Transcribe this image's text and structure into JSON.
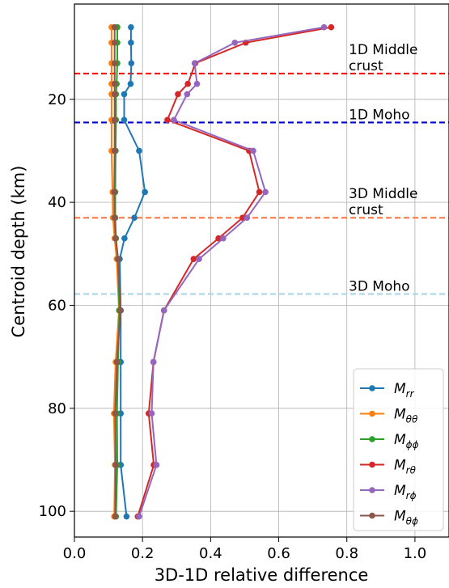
{
  "chart_data": {
    "type": "line",
    "xlabel": "3D-1D relative difference",
    "ylabel": "Centroid depth (km)",
    "xlim": [
      0.0,
      1.1
    ],
    "ylim": [
      105,
      1.5
    ],
    "y_inverted": true,
    "grid": true,
    "legend_position": "bottom-right",
    "x_ticks": [
      {
        "value": 0.0,
        "label": "0.0"
      },
      {
        "value": 0.2,
        "label": "0.2"
      },
      {
        "value": 0.4,
        "label": "0.4"
      },
      {
        "value": 0.6,
        "label": "0.6"
      },
      {
        "value": 0.8,
        "label": "0.8"
      },
      {
        "value": 1.0,
        "label": "1.0"
      }
    ],
    "y_ticks": [
      {
        "value": 20,
        "label": "20"
      },
      {
        "value": 40,
        "label": "40"
      },
      {
        "value": 60,
        "label": "60"
      },
      {
        "value": 80,
        "label": "80"
      },
      {
        "value": 100,
        "label": "100"
      }
    ],
    "depths": [
      6,
      9,
      13,
      17,
      19,
      24,
      30,
      38,
      43,
      47,
      51,
      61,
      71,
      81,
      91,
      101
    ],
    "series": [
      {
        "name": "M_rr",
        "base": "M",
        "sub": "rr",
        "color": "#1f77b4",
        "values": [
          0.166,
          0.166,
          0.167,
          0.165,
          0.146,
          0.146,
          0.19,
          0.207,
          0.176,
          0.147,
          0.133,
          0.136,
          0.136,
          0.136,
          0.136,
          0.153
        ]
      },
      {
        "name": "M_θθ",
        "base": "M",
        "sub": "θθ",
        "color": "#ff7f0e",
        "values": [
          0.109,
          0.109,
          0.109,
          0.109,
          0.109,
          0.109,
          0.109,
          0.112,
          0.113,
          0.118,
          0.124,
          0.131,
          0.121,
          0.116,
          0.119,
          0.117
        ]
      },
      {
        "name": "M_ϕϕ",
        "base": "M",
        "sub": "ϕϕ",
        "color": "#2ca02c",
        "values": [
          0.126,
          0.126,
          0.126,
          0.124,
          0.122,
          0.122,
          0.121,
          0.12,
          0.12,
          0.122,
          0.128,
          0.132,
          0.128,
          0.125,
          0.126,
          0.122
        ]
      },
      {
        "name": "M_rθ",
        "base": "M",
        "sub": "rθ",
        "color": "#d62728",
        "values": [
          0.754,
          0.503,
          0.355,
          0.333,
          0.304,
          0.273,
          0.513,
          0.543,
          0.494,
          0.423,
          0.35,
          0.263,
          0.232,
          0.218,
          0.233,
          0.186
        ]
      },
      {
        "name": "M_rϕ",
        "base": "M",
        "sub": "rϕ",
        "color": "#9467bd",
        "values": [
          0.733,
          0.471,
          0.353,
          0.36,
          0.331,
          0.292,
          0.525,
          0.561,
          0.507,
          0.437,
          0.366,
          0.263,
          0.232,
          0.227,
          0.241,
          0.19
        ]
      },
      {
        "name": "M_θϕ",
        "base": "M",
        "sub": "θϕ",
        "color": "#8c564b",
        "values": [
          0.118,
          0.118,
          0.118,
          0.118,
          0.118,
          0.118,
          0.118,
          0.117,
          0.118,
          0.121,
          0.128,
          0.135,
          0.125,
          0.12,
          0.121,
          0.12
        ]
      }
    ],
    "reference_lines": [
      {
        "depth": 15,
        "color": "#ff0000",
        "label_lines": [
          "1D Middle",
          " crust"
        ]
      },
      {
        "depth": 24.5,
        "color": "#0000cc",
        "label_lines": [
          "1D Moho"
        ]
      },
      {
        "depth": 43,
        "color": "#ff7f50",
        "label_lines": [
          "3D Middle",
          " crust"
        ]
      },
      {
        "depth": 57.8,
        "color": "#add8e6",
        "label_lines": [
          "3D Moho"
        ]
      }
    ]
  }
}
